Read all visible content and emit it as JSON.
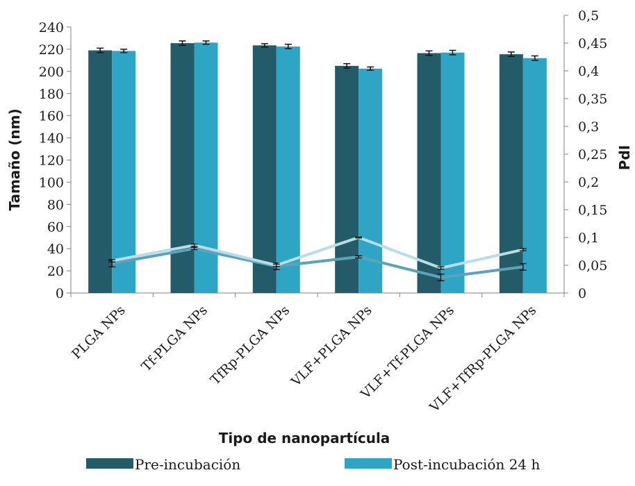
{
  "chart_data": {
    "type": "bar",
    "categories": [
      "PLGA NPs",
      "Tf-PLGA NPs",
      "TfRp-PLGA NPs",
      "VLF+PLGA NPs",
      "VLF+Tf-PLGA NPs",
      "VLF+TfRp-PLGA NPs"
    ],
    "xlabel": "Tipo de nanopartícula",
    "ylabel": "Tamaño (nm)",
    "y2label": "PdI",
    "ylim": [
      0,
      240
    ],
    "y2lim": [
      0,
      0.5
    ],
    "yticks": [
      "0",
      "20",
      "40",
      "60",
      "80",
      "100",
      "120",
      "140",
      "160",
      "180",
      "200",
      "220",
      "240"
    ],
    "y2ticks": [
      "0",
      "0,05",
      "0,1",
      "0,15",
      "0,2",
      "0,25",
      "0,3",
      "0,35",
      "0,4",
      "0,45",
      "0,5"
    ],
    "grid": false,
    "legend_position": "bottom",
    "series": [
      {
        "name": "Pre-incubación",
        "axis": "left",
        "kind": "bar",
        "color": "#245b69",
        "values": [
          219,
          225.5,
          223.5,
          205,
          216.5,
          215.5
        ],
        "errors": [
          2,
          2,
          1.5,
          2,
          2,
          2
        ]
      },
      {
        "name": "Post-incubación 24 h",
        "axis": "left",
        "kind": "bar",
        "color": "#2fa5c6",
        "values": [
          218.5,
          226,
          222.5,
          202.5,
          217,
          212
        ],
        "errors": [
          1.5,
          1.5,
          2,
          1.5,
          2,
          2
        ]
      },
      {
        "axis": "right",
        "kind": "line",
        "color": "#5aa3b8",
        "values": [
          0.053,
          0.08,
          0.048,
          0.065,
          0.028,
          0.047
        ],
        "errors": [
          0.006,
          0.002,
          0.006,
          0.002,
          0.006,
          0.006
        ]
      },
      {
        "axis": "right",
        "kind": "line",
        "color": "#b8dde6",
        "values": [
          0.058,
          0.086,
          0.05,
          0.1,
          0.045,
          0.078
        ],
        "errors": [
          0.002,
          0.002,
          0.002,
          0.001,
          0.002,
          0.002
        ]
      }
    ]
  }
}
